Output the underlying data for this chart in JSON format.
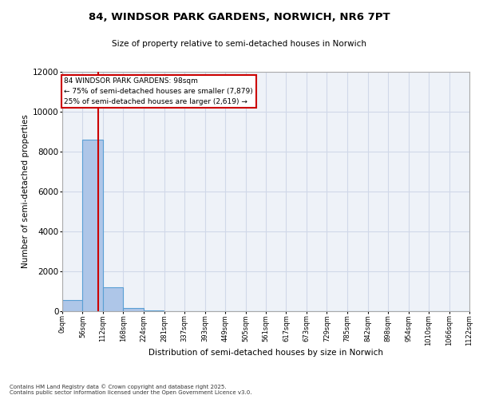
{
  "title_line1": "84, WINDSOR PARK GARDENS, NORWICH, NR6 7PT",
  "title_line2": "Size of property relative to semi-detached houses in Norwich",
  "xlabel": "Distribution of semi-detached houses by size in Norwich",
  "ylabel": "Number of semi-detached properties",
  "bin_edges": [
    0,
    56,
    112,
    168,
    224,
    281,
    337,
    393,
    449,
    505,
    561,
    617,
    673,
    729,
    785,
    842,
    898,
    954,
    1010,
    1066,
    1122
  ],
  "bar_heights": [
    550,
    8600,
    1200,
    170,
    60,
    0,
    0,
    0,
    0,
    0,
    0,
    0,
    0,
    0,
    0,
    0,
    0,
    0,
    0,
    0
  ],
  "bar_color": "#aec6e8",
  "bar_edge_color": "#5a9fd4",
  "grid_color": "#d0d8e8",
  "background_color": "#eef2f8",
  "property_size": 98,
  "red_line_color": "#cc0000",
  "annotation_text_line1": "84 WINDSOR PARK GARDENS: 98sqm",
  "annotation_text_line2": "← 75% of semi-detached houses are smaller (7,879)",
  "annotation_text_line3": "25% of semi-detached houses are larger (2,619) →",
  "annotation_box_color": "#ffffff",
  "annotation_box_edge_color": "#cc0000",
  "footer_text": "Contains HM Land Registry data © Crown copyright and database right 2025.\nContains public sector information licensed under the Open Government Licence v3.0.",
  "ylim": [
    0,
    12000
  ],
  "tick_labels": [
    "0sqm",
    "56sqm",
    "112sqm",
    "168sqm",
    "224sqm",
    "281sqm",
    "337sqm",
    "393sqm",
    "449sqm",
    "505sqm",
    "561sqm",
    "617sqm",
    "673sqm",
    "729sqm",
    "785sqm",
    "842sqm",
    "898sqm",
    "954sqm",
    "1010sqm",
    "1066sqm",
    "1122sqm"
  ]
}
